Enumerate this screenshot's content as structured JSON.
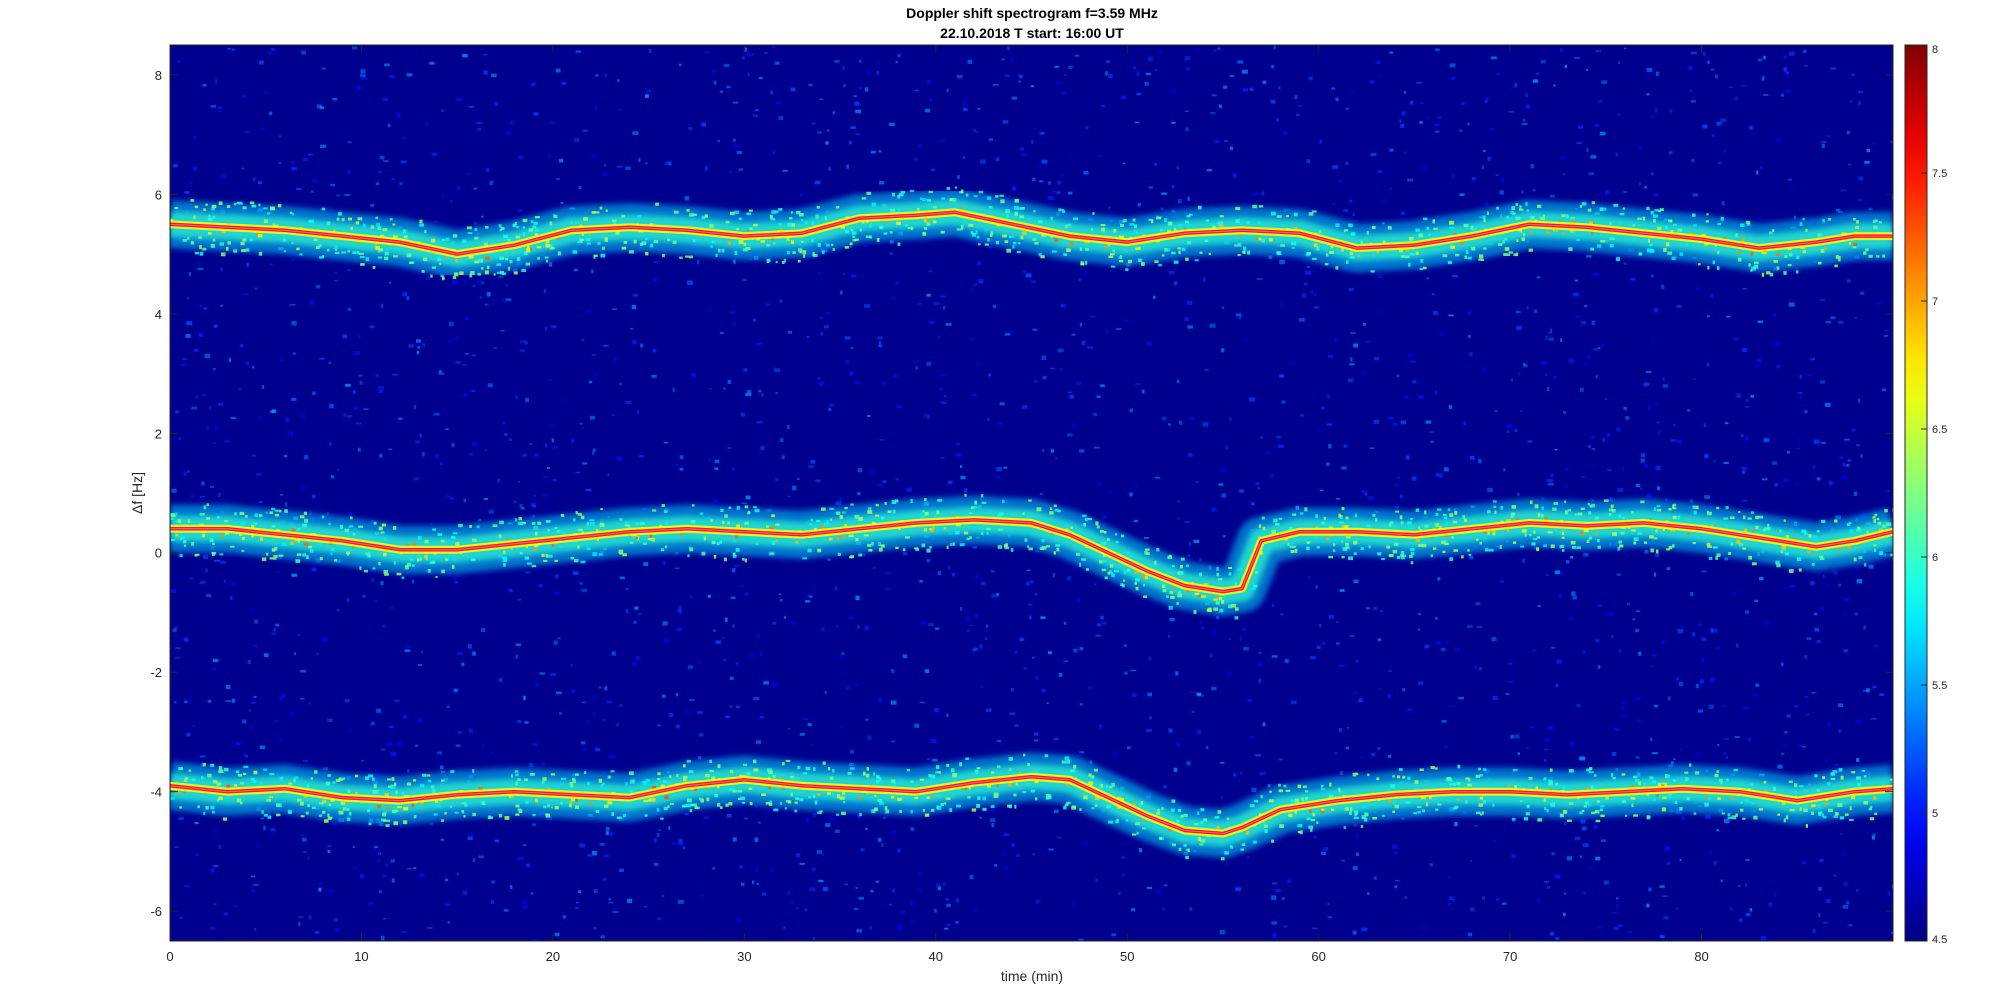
{
  "chart_data": {
    "type": "heatmap",
    "title": "Doppler shift spectrogram f=3.59 MHz",
    "subtitle": "22.10.2018   T start: 16:00 UT",
    "xlabel": "time (min)",
    "ylabel": "Δf [Hz]",
    "xlim": [
      0,
      90
    ],
    "ylim": [
      -6.5,
      8.5
    ],
    "xticks": [
      0,
      10,
      20,
      30,
      40,
      50,
      60,
      70,
      80
    ],
    "yticks": [
      -6,
      -4,
      -2,
      0,
      2,
      4,
      6,
      8
    ],
    "colormap": "jet",
    "colorbar": {
      "range": [
        4.5,
        8
      ],
      "ticks": [
        "4.5",
        "5",
        "5.5",
        "6",
        "6.5",
        "7",
        "7.5",
        "8"
      ],
      "placement": "right"
    },
    "grid": false,
    "background_intensity": 4.6,
    "series": [
      {
        "x": [
          0,
          3,
          6,
          9,
          12,
          15,
          18,
          21,
          24,
          27,
          30,
          33,
          36,
          39,
          41,
          44,
          47,
          50,
          53,
          56,
          59,
          62,
          65,
          68,
          71,
          74,
          77,
          80,
          83,
          86,
          88,
          90
        ],
        "values": [
          5.5,
          5.45,
          5.4,
          5.3,
          5.2,
          5.0,
          5.15,
          5.4,
          5.45,
          5.4,
          5.3,
          5.35,
          5.6,
          5.65,
          5.7,
          5.5,
          5.3,
          5.2,
          5.35,
          5.4,
          5.35,
          5.1,
          5.15,
          5.3,
          5.5,
          5.45,
          5.35,
          5.25,
          5.1,
          5.2,
          5.3,
          5.3
        ]
      },
      {
        "x": [
          0,
          3,
          6,
          9,
          12,
          15,
          18,
          21,
          24,
          27,
          30,
          33,
          36,
          39,
          42,
          45,
          47,
          49,
          51,
          53,
          55,
          56,
          57,
          59,
          62,
          65,
          68,
          71,
          74,
          77,
          80,
          83,
          86,
          88,
          90
        ],
        "values": [
          0.4,
          0.4,
          0.3,
          0.2,
          0.05,
          0.05,
          0.15,
          0.25,
          0.35,
          0.4,
          0.35,
          0.3,
          0.4,
          0.5,
          0.55,
          0.5,
          0.3,
          0.0,
          -0.3,
          -0.55,
          -0.65,
          -0.6,
          0.2,
          0.35,
          0.35,
          0.3,
          0.4,
          0.5,
          0.45,
          0.5,
          0.4,
          0.25,
          0.1,
          0.2,
          0.35
        ]
      },
      {
        "x": [
          0,
          3,
          6,
          9,
          12,
          15,
          18,
          21,
          24,
          27,
          30,
          33,
          36,
          39,
          42,
          45,
          47,
          49,
          51,
          53,
          55,
          56,
          58,
          61,
          64,
          67,
          70,
          73,
          76,
          79,
          82,
          85,
          88,
          90
        ],
        "values": [
          -3.9,
          -4.0,
          -3.95,
          -4.1,
          -4.15,
          -4.05,
          -4.0,
          -4.05,
          -4.1,
          -3.9,
          -3.8,
          -3.9,
          -3.95,
          -4.0,
          -3.85,
          -3.75,
          -3.8,
          -4.1,
          -4.4,
          -4.65,
          -4.7,
          -4.6,
          -4.3,
          -4.15,
          -4.05,
          -4.0,
          -4.0,
          -4.05,
          -4.0,
          -3.95,
          -4.0,
          -4.15,
          -4.0,
          -3.95
        ]
      }
    ]
  }
}
